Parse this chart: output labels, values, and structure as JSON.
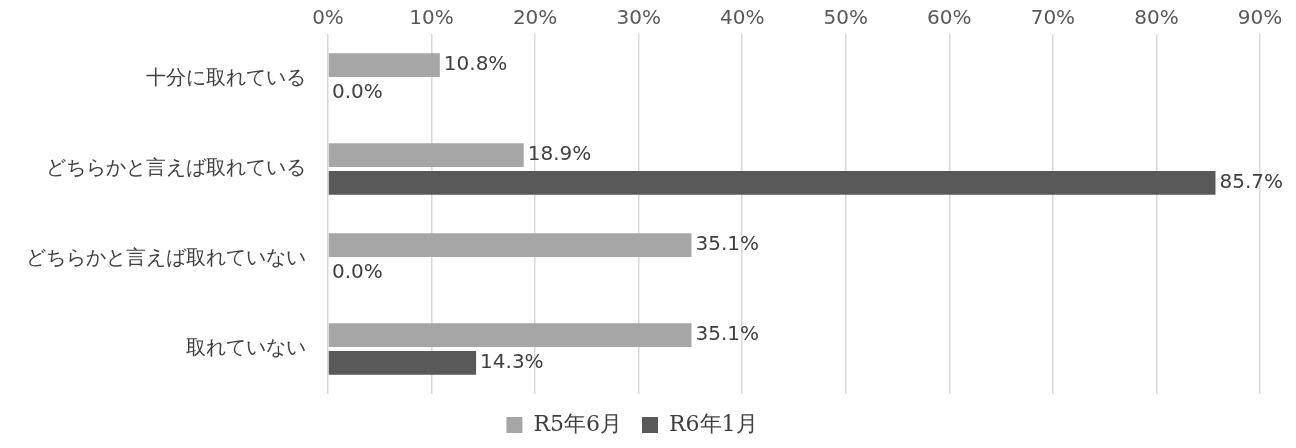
{
  "chart_data": {
    "type": "bar",
    "orientation": "horizontal",
    "categories": [
      "十分に取れている",
      "どちらかと言えば取れている",
      "どちらかと言えば取れていない",
      "取れていない"
    ],
    "series": [
      {
        "name": "R5年6月",
        "color": "#a6a6a6",
        "values": [
          10.8,
          18.9,
          35.1,
          35.1
        ],
        "value_labels": [
          "10.8%",
          "18.9%",
          "35.1%",
          "35.1%"
        ]
      },
      {
        "name": "R6年1月",
        "color": "#595959",
        "values": [
          0.0,
          85.7,
          0.0,
          14.3
        ],
        "value_labels": [
          "0.0%",
          "85.7%",
          "0.0%",
          "14.3%"
        ]
      }
    ],
    "xlim": [
      0,
      90
    ],
    "xticks": [
      {
        "value": 0,
        "label": "0%"
      },
      {
        "value": 10,
        "label": "10%"
      },
      {
        "value": 20,
        "label": "20%"
      },
      {
        "value": 30,
        "label": "30%"
      },
      {
        "value": 40,
        "label": "40%"
      },
      {
        "value": 50,
        "label": "50%"
      },
      {
        "value": 60,
        "label": "60%"
      },
      {
        "value": 70,
        "label": "70%"
      },
      {
        "value": 80,
        "label": "80%"
      },
      {
        "value": 90,
        "label": "90%"
      }
    ],
    "grid": "x",
    "legend": "bottom"
  }
}
